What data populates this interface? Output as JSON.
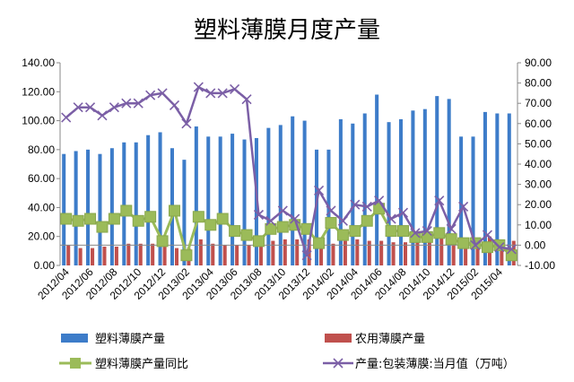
{
  "chart_data": {
    "type": "bar",
    "title": "塑料薄膜月度产量",
    "left_axis": {
      "ylim": [
        0,
        140
      ],
      "ticks": [
        "0.00",
        "20.00",
        "40.00",
        "60.00",
        "80.00",
        "100.00",
        "120.00",
        "140.00"
      ]
    },
    "right_axis": {
      "ylim": [
        -10,
        90
      ],
      "ticks": [
        "-10.00",
        "0.00",
        "10.00",
        "20.00",
        "30.00",
        "40.00",
        "50.00",
        "60.00",
        "70.00",
        "80.00",
        "90.00"
      ]
    },
    "x_tick_labels": [
      "2012/04",
      "2012/06",
      "2012/08",
      "2012/10",
      "2012/12",
      "2013/02",
      "2013/04",
      "2013/06",
      "2013/08",
      "2013/10",
      "2013/12",
      "2014/02",
      "2014/04",
      "2014/06",
      "2014/08",
      "2014/10",
      "2014/12",
      "2015/02",
      "2015/04"
    ],
    "categories": [
      "2012/04",
      "2012/05",
      "2012/06",
      "2012/07",
      "2012/08",
      "2012/09",
      "2012/10",
      "2012/11",
      "2012/12",
      "2013/01",
      "2013/02",
      "2013/03",
      "2013/04",
      "2013/05",
      "2013/06",
      "2013/07",
      "2013/08",
      "2013/09",
      "2013/10",
      "2013/11",
      "2013/12",
      "2014/01",
      "2014/02",
      "2014/03",
      "2014/04",
      "2014/05",
      "2014/06",
      "2014/07",
      "2014/08",
      "2014/09",
      "2014/10",
      "2014/11",
      "2014/12",
      "2015/01",
      "2015/02",
      "2015/03",
      "2015/04",
      "2015/05"
    ],
    "grid": false,
    "legend_position": "bottom",
    "series": [
      {
        "name": "塑料薄膜产量",
        "type": "bar",
        "axis": "left",
        "color": "#3d7cc9",
        "values": [
          77,
          79,
          80,
          77,
          81,
          85,
          85,
          90,
          92,
          81,
          73,
          96,
          89,
          89,
          91,
          87,
          88,
          95,
          97,
          103,
          100,
          80,
          80,
          101,
          98,
          105,
          118,
          99,
          101,
          107,
          108,
          117,
          115,
          89,
          89,
          106,
          105,
          105
        ]
      },
      {
        "name": "农用薄膜产量",
        "type": "bar",
        "axis": "left",
        "color": "#c0504d",
        "values": [
          14,
          12,
          12,
          13,
          13,
          15,
          15,
          15,
          13,
          12,
          12,
          18,
          15,
          14,
          14,
          14,
          15,
          17,
          18,
          18,
          18,
          15,
          15,
          17,
          18,
          17,
          17,
          16,
          16,
          16,
          17,
          19,
          17,
          14,
          14,
          20,
          17,
          17
        ]
      },
      {
        "name": "塑料薄膜产量同比",
        "type": "line",
        "axis": "right",
        "color": "#9bbb59",
        "values": [
          13,
          12,
          13,
          9,
          13,
          17,
          12,
          14,
          2,
          17,
          -5,
          14,
          10,
          13,
          7,
          5,
          2,
          8,
          9,
          10,
          8,
          1,
          11,
          5,
          7,
          12,
          18,
          7,
          7,
          4,
          4,
          6,
          3,
          1,
          1,
          -1,
          0,
          -5
        ]
      },
      {
        "name": "产量:包装薄膜:当月值（万吨）",
        "type": "line",
        "axis": "right",
        "color": "#7b5fa6",
        "values": [
          63,
          68,
          68,
          64,
          68,
          70,
          70,
          74,
          75,
          69,
          60,
          78,
          75,
          75,
          77,
          72,
          15,
          12,
          17,
          13,
          -5,
          27,
          17,
          12,
          20,
          19,
          22,
          13,
          16,
          6,
          7,
          22,
          8,
          19,
          0,
          5,
          -1,
          -2
        ]
      }
    ]
  }
}
